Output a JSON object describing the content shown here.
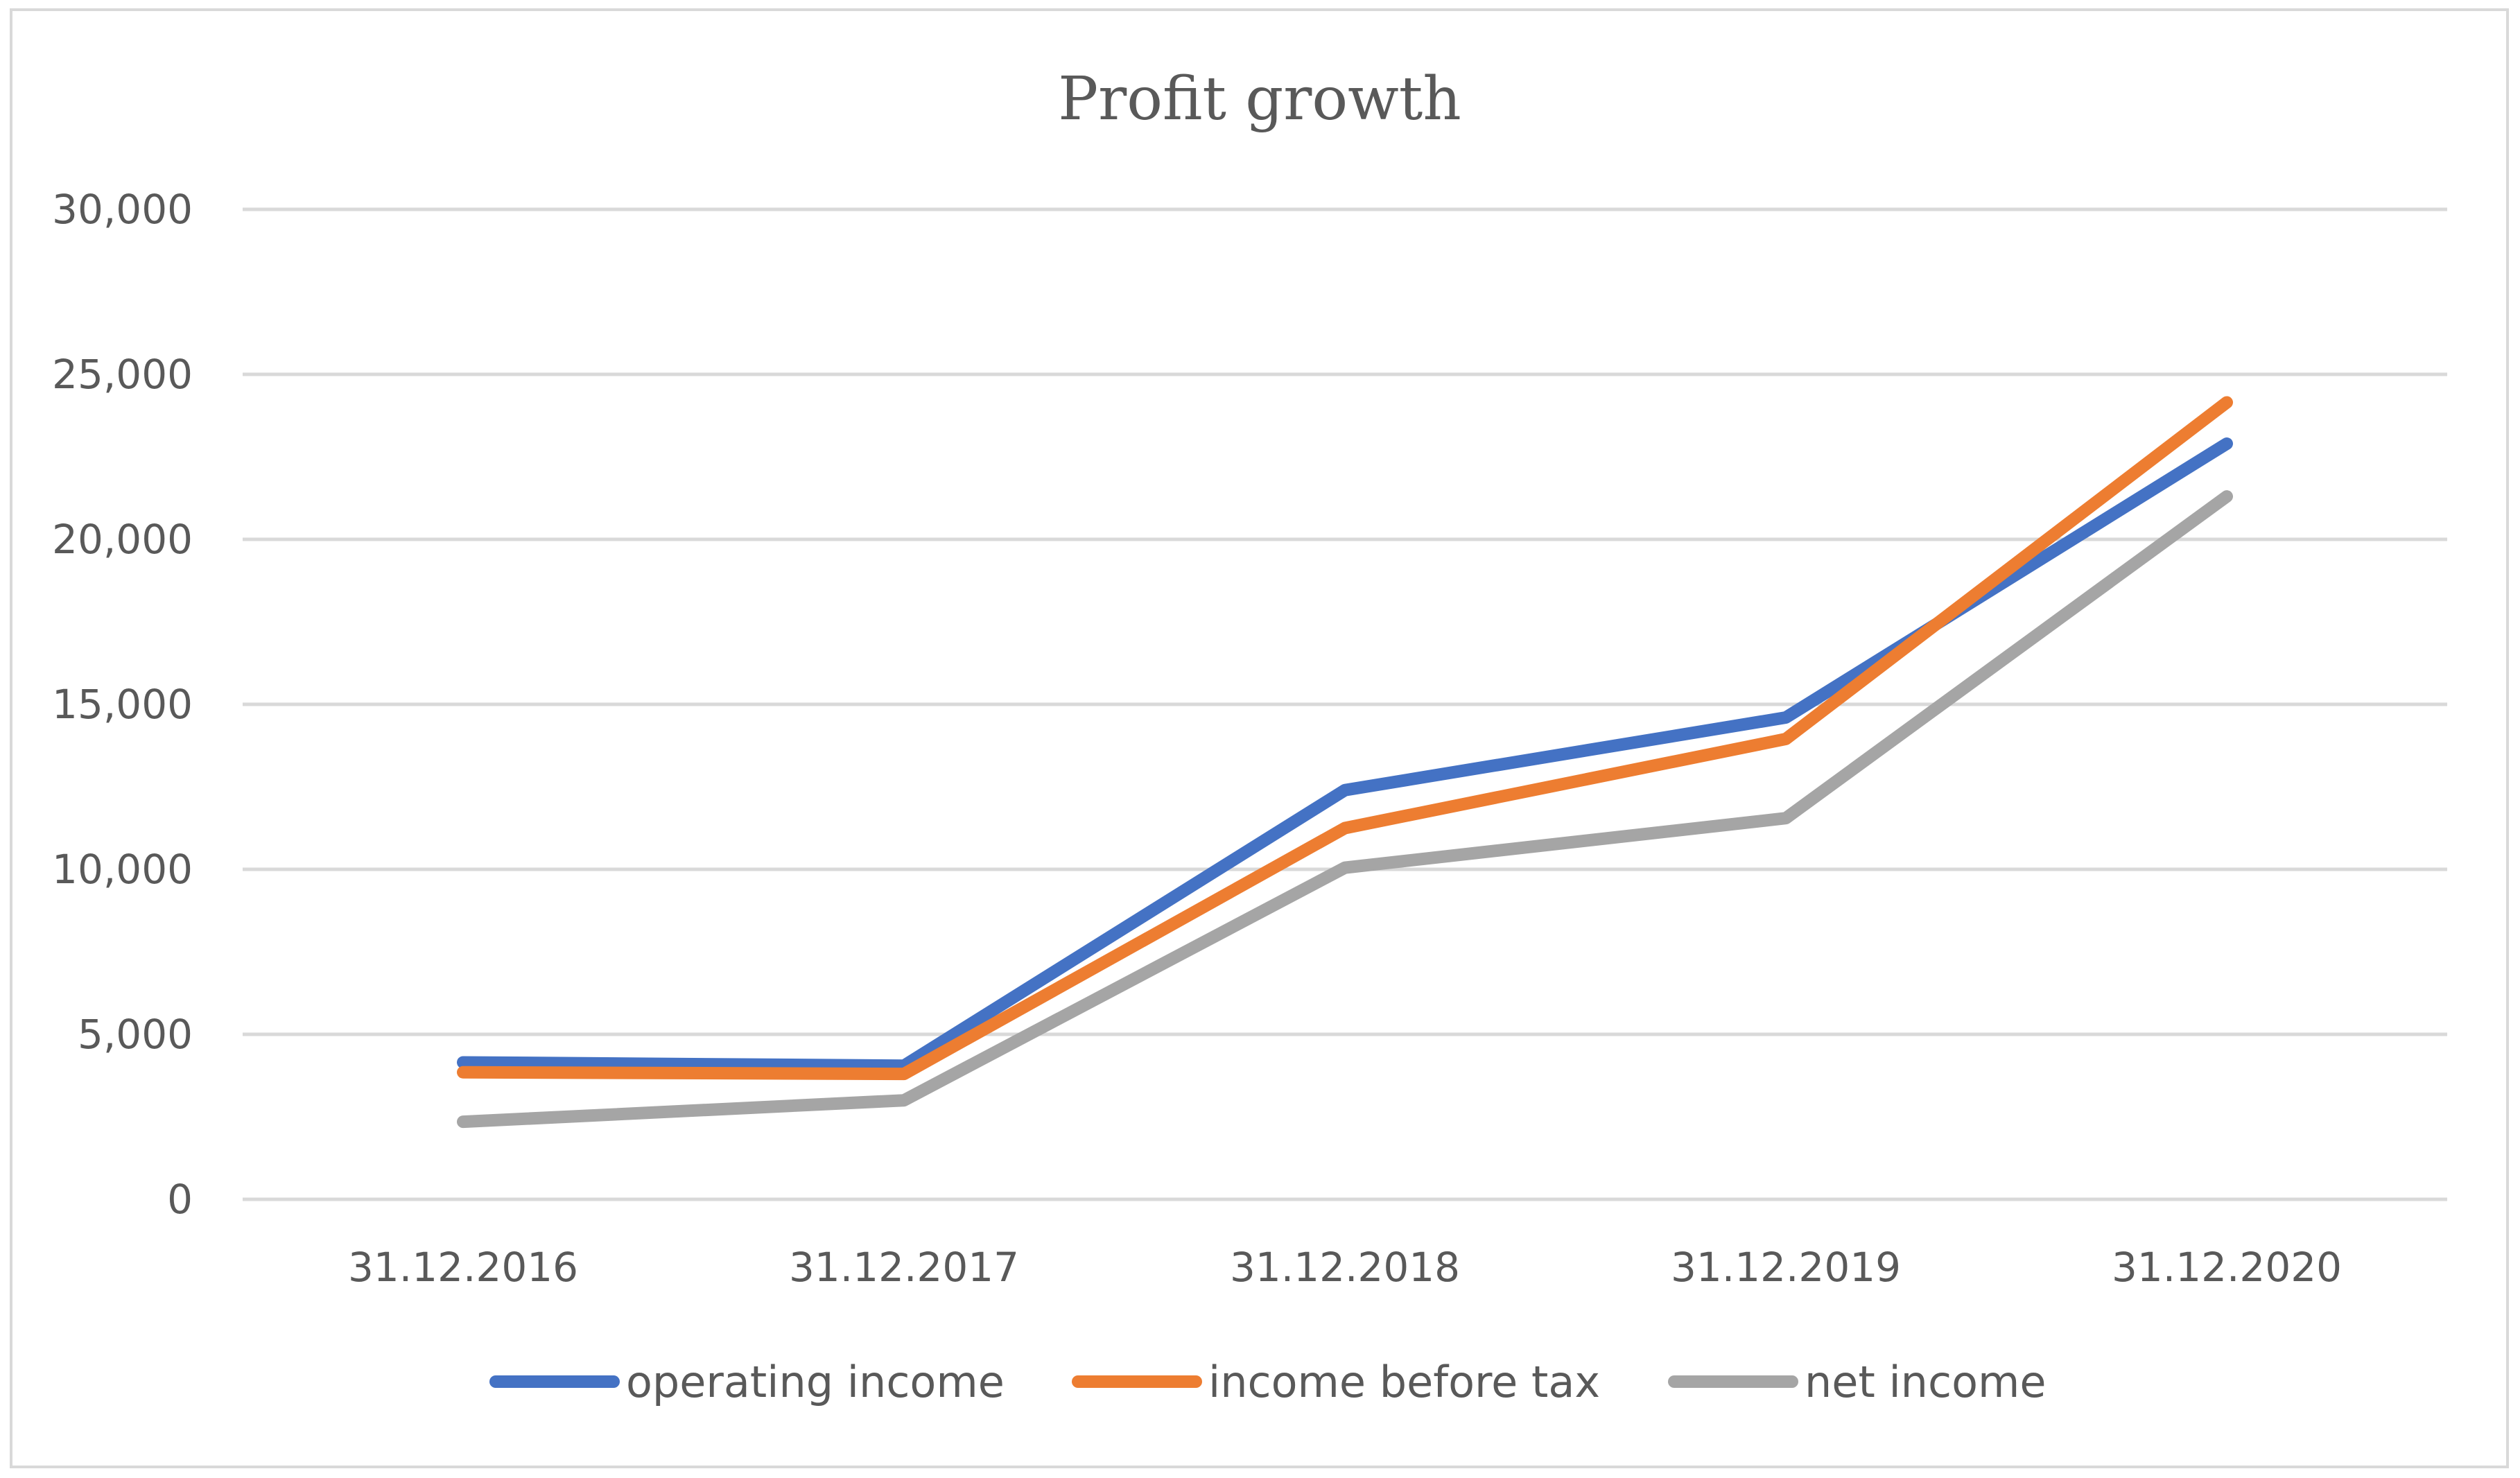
{
  "chart_data": {
    "type": "line",
    "title": "Profit growth",
    "xlabel": "",
    "ylabel": "",
    "categories": [
      "31.12.2016",
      "31.12.2017",
      "31.12.2018",
      "31.12.2019",
      "31.12.2020"
    ],
    "ylim": [
      0,
      30000
    ],
    "yticks": [
      0,
      5000,
      10000,
      15000,
      20000,
      25000,
      30000
    ],
    "ytick_labels": [
      "0",
      "5,000",
      "10,000",
      "15,000",
      "20,000",
      "25,000",
      "30,000"
    ],
    "grid": true,
    "legend_position": "bottom",
    "series": [
      {
        "name": "operating income",
        "color": "#4472c4",
        "values": [
          4150,
          4050,
          12400,
          14600,
          22900
        ]
      },
      {
        "name": "income before tax",
        "color": "#ed7d31",
        "values": [
          3850,
          3800,
          11250,
          13950,
          24150
        ]
      },
      {
        "name": "net income",
        "color": "#a5a5a5",
        "values": [
          2350,
          3000,
          10050,
          11550,
          21300
        ]
      }
    ]
  }
}
